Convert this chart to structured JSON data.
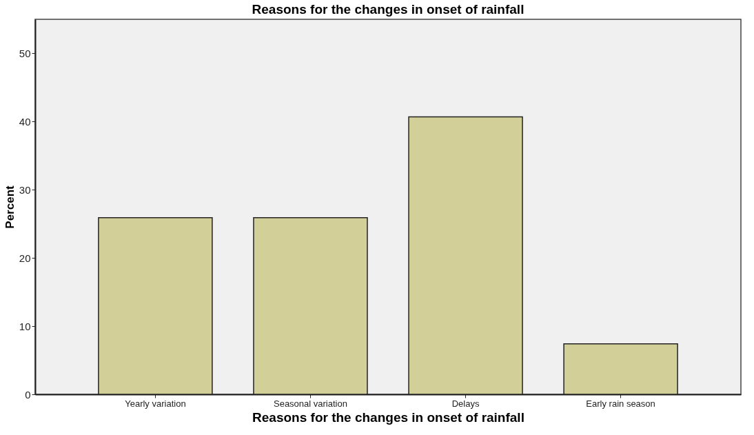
{
  "chart_data": {
    "type": "bar",
    "title": "Reasons for the changes in onset of rainfall",
    "xlabel": "Reasons for the changes in onset of rainfall",
    "ylabel": "Percent",
    "categories": [
      "Yearly variation",
      "Seasonal variation",
      "Delays",
      "Early rain season"
    ],
    "values": [
      25.9,
      25.9,
      40.7,
      7.4
    ],
    "color": "#d3cf98",
    "ylim": [
      0,
      55
    ],
    "yticks": [
      0,
      10,
      20,
      30,
      40,
      50
    ],
    "grid": false
  }
}
